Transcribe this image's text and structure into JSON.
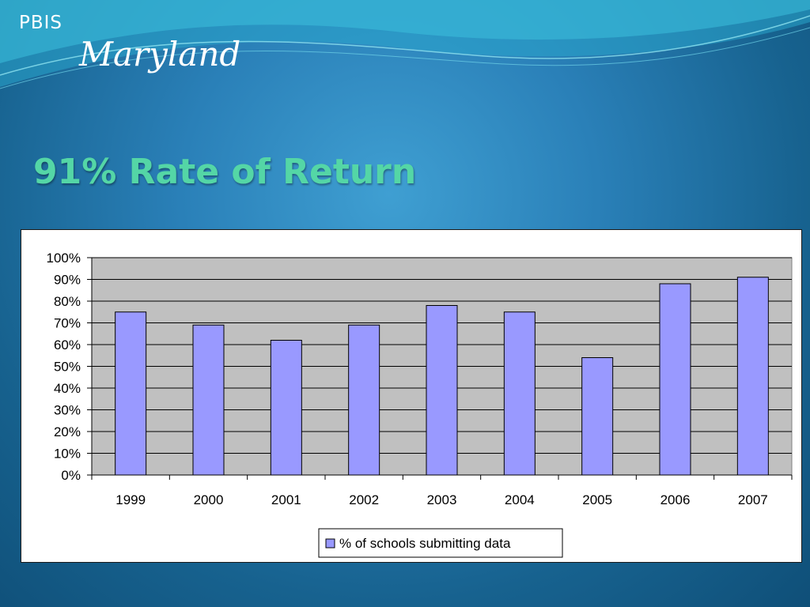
{
  "brand": {
    "line1": "PBIS",
    "line2": "Maryland"
  },
  "slide": {
    "title": "91% Rate of Return"
  },
  "colors": {
    "bar_fill": "#9999ff",
    "plot_background": "#c0c0c0",
    "title_color": "#54d6a6"
  },
  "chart_data": {
    "type": "bar",
    "categories": [
      "1999",
      "2000",
      "2001",
      "2002",
      "2003",
      "2004",
      "2005",
      "2006",
      "2007"
    ],
    "series": [
      {
        "name": "% of schools submitting data",
        "values": [
          75,
          69,
          62,
          69,
          78,
          75,
          54,
          88,
          91
        ]
      }
    ],
    "ylim": [
      0,
      100
    ],
    "yticks": [
      "0%",
      "10%",
      "20%",
      "30%",
      "40%",
      "50%",
      "60%",
      "70%",
      "80%",
      "90%",
      "100%"
    ],
    "grid": true,
    "legend_position": "bottom"
  }
}
